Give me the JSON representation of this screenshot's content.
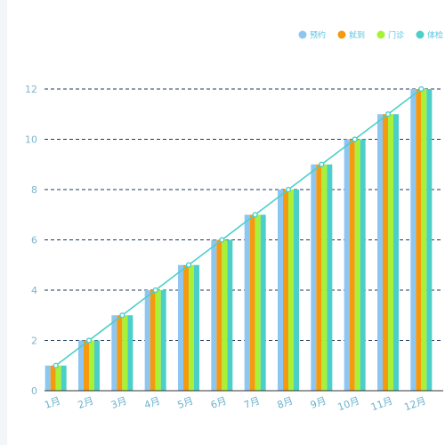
{
  "chart_data": {
    "type": "bar",
    "categories": [
      "1月",
      "2月",
      "3月",
      "4月",
      "5月",
      "6月",
      "7月",
      "8月",
      "9月",
      "10月",
      "11月",
      "12月"
    ],
    "series": [
      {
        "name": "预约",
        "type": "bar",
        "color": "#8ec6f2",
        "values": [
          1,
          2,
          3,
          4,
          5,
          6,
          7,
          8,
          9,
          10,
          11,
          12
        ]
      },
      {
        "name": "就到",
        "type": "bar",
        "color": "#f59a0e",
        "values": [
          1,
          2,
          3,
          4,
          5,
          6,
          7,
          8,
          9,
          10,
          11,
          12
        ]
      },
      {
        "name": "门诊",
        "type": "bar",
        "color": "#a7f236",
        "values": [
          1,
          2,
          3,
          4,
          5,
          6,
          7,
          8,
          9,
          10,
          11,
          12
        ]
      },
      {
        "name": "体检",
        "type": "bar",
        "color": "#4ccfc9",
        "values": [
          1,
          2,
          3,
          4,
          5,
          6,
          7,
          8,
          9,
          10,
          11,
          12
        ]
      }
    ],
    "trend_line": {
      "color": "#4ccfc9",
      "values": [
        1,
        2,
        3,
        4,
        5,
        6,
        7,
        8,
        9,
        10,
        11,
        12
      ]
    },
    "yticks": [
      0,
      2,
      4,
      6,
      8,
      10,
      12
    ],
    "ylim": [
      0,
      12
    ],
    "grid": true,
    "grid_color": "#1f3a5a",
    "legend_position": "top-right",
    "xlabel": "",
    "ylabel": "",
    "title": ""
  }
}
